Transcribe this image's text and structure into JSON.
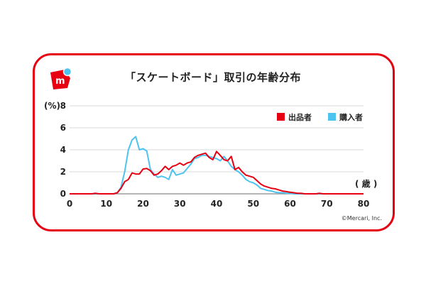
{
  "title": "「スケートボード」取引の年齢分布",
  "credit": "©Mercari, Inc.",
  "brand": {
    "accent": "#e60012",
    "logo_letter": "m",
    "logo_dot": "#4dc3f0"
  },
  "chart_data": {
    "type": "line",
    "title": "「スケートボード」取引の年齢分布",
    "ylabel": "(%)",
    "xlabel": "( 歳 )",
    "xlim": [
      0,
      80
    ],
    "ylim": [
      0,
      8
    ],
    "x_ticks": [
      0,
      10,
      20,
      30,
      40,
      50,
      60,
      70,
      80
    ],
    "y_ticks": [
      0,
      2,
      4,
      6,
      8
    ],
    "grid": true,
    "legend_position": "top-right",
    "x": [
      0,
      1,
      2,
      3,
      4,
      5,
      6,
      7,
      8,
      9,
      10,
      11,
      12,
      13,
      14,
      15,
      16,
      17,
      18,
      19,
      20,
      21,
      22,
      23,
      24,
      25,
      26,
      27,
      28,
      29,
      30,
      31,
      32,
      33,
      34,
      35,
      36,
      37,
      38,
      39,
      40,
      41,
      42,
      43,
      44,
      45,
      46,
      47,
      48,
      49,
      50,
      51,
      52,
      53,
      54,
      55,
      56,
      57,
      58,
      59,
      60,
      61,
      62,
      63,
      64,
      65,
      66,
      67,
      68,
      69,
      70,
      71,
      72,
      73,
      74,
      75,
      76,
      77,
      78,
      79,
      80
    ],
    "series": [
      {
        "name": "出品者",
        "color": "#e60012",
        "values": [
          0,
          0,
          0,
          0,
          0,
          0,
          0,
          0.05,
          0,
          0,
          0,
          0,
          0,
          0.1,
          0.5,
          1.1,
          1.3,
          1.9,
          1.8,
          1.8,
          2.25,
          2.3,
          2.1,
          1.7,
          1.8,
          2.1,
          2.5,
          2.2,
          2.5,
          2.6,
          2.8,
          2.6,
          2.8,
          2.9,
          3.3,
          3.5,
          3.6,
          3.7,
          3.3,
          3.1,
          3.85,
          3.5,
          3.1,
          3.0,
          3.4,
          2.2,
          2.4,
          2.0,
          1.7,
          1.6,
          1.5,
          1.2,
          0.9,
          0.7,
          0.6,
          0.5,
          0.45,
          0.35,
          0.25,
          0.2,
          0.15,
          0.1,
          0.05,
          0.05,
          0,
          0,
          0,
          0,
          0.05,
          0,
          0,
          0,
          0,
          0,
          0,
          0,
          0,
          0,
          0,
          0,
          0
        ]
      },
      {
        "name": "購入者",
        "color": "#4dc3f0",
        "values": [
          0,
          0,
          0,
          0,
          0,
          0,
          0,
          0,
          0,
          0,
          0,
          0,
          0,
          0.1,
          0.6,
          2.0,
          4.0,
          4.9,
          5.2,
          4.0,
          4.1,
          3.9,
          2.2,
          1.8,
          1.5,
          1.6,
          1.5,
          1.3,
          2.2,
          1.7,
          1.8,
          1.9,
          2.3,
          2.7,
          3.2,
          3.3,
          3.5,
          3.5,
          3.4,
          3.3,
          3.2,
          3.0,
          3.4,
          3.0,
          2.5,
          2.2,
          2.0,
          1.7,
          1.3,
          1.1,
          1.0,
          0.8,
          0.5,
          0.4,
          0.3,
          0.25,
          0.15,
          0.1,
          0.1,
          0.05,
          0.05,
          0,
          0,
          0,
          0,
          0,
          0,
          0,
          0,
          0,
          0,
          0,
          0,
          0,
          0,
          0,
          0,
          0,
          0,
          0,
          0
        ]
      }
    ]
  }
}
